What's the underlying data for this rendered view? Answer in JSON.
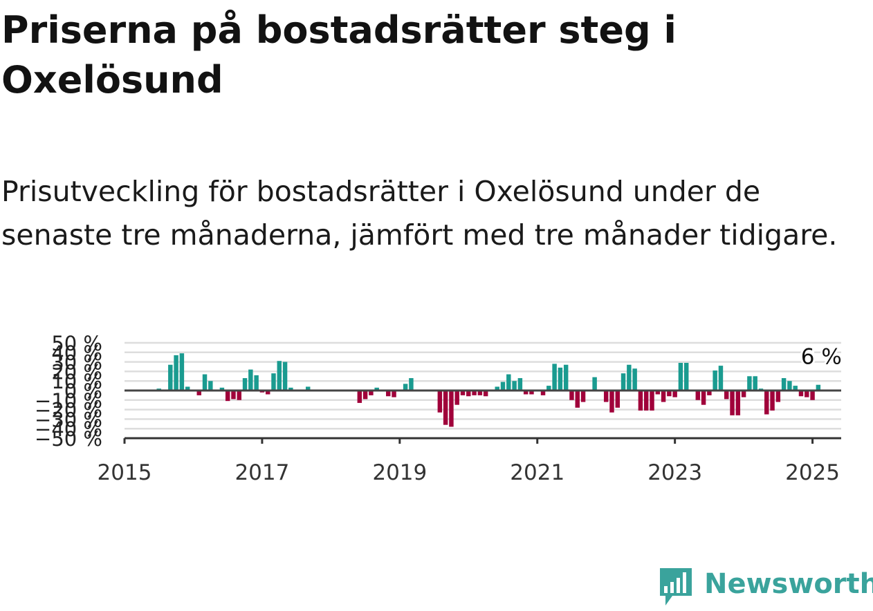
{
  "title": "Priserna på bostadsrätter steg i Oxelösund",
  "subtitle": "Prisutveckling för bostadsrätter i Oxelösund under de senaste tre månaderna, jämfört med tre månader tidigare.",
  "annotation": "6 %",
  "brand": {
    "name": "Newsworthy",
    "icon": "newsworthy-logo-icon",
    "color": "#3aa39c"
  },
  "colors": {
    "positive": "#1a9b90",
    "negative": "#a0003a",
    "grid": "#dddddd",
    "axis": "#333333"
  },
  "chart_data": {
    "type": "bar",
    "x_unit": "month",
    "ylim": [
      -50,
      50
    ],
    "xlim": [
      "2015-01",
      "2025-06"
    ],
    "y_ticks": [
      {
        "v": 50,
        "label": "50 %"
      },
      {
        "v": 40,
        "label": "40 %"
      },
      {
        "v": 30,
        "label": "30 %"
      },
      {
        "v": 20,
        "label": "20 %"
      },
      {
        "v": 10,
        "label": "10 %"
      },
      {
        "v": 0,
        "label": "0 %"
      },
      {
        "v": -10,
        "label": "−10 %"
      },
      {
        "v": -20,
        "label": "−20 %"
      },
      {
        "v": -30,
        "label": "−30 %"
      },
      {
        "v": -40,
        "label": "−40 %"
      },
      {
        "v": -50,
        "label": "−50 %"
      }
    ],
    "x_ticks": [
      {
        "date": "2015-01",
        "label": "2015"
      },
      {
        "date": "2017-01",
        "label": "2017"
      },
      {
        "date": "2019-01",
        "label": "2019"
      },
      {
        "date": "2021-01",
        "label": "2021"
      },
      {
        "date": "2023-01",
        "label": "2023"
      },
      {
        "date": "2025-01",
        "label": "2025"
      }
    ],
    "points": [
      {
        "x": "2015-07",
        "y": 2
      },
      {
        "x": "2015-09",
        "y": 27
      },
      {
        "x": "2015-10",
        "y": 37
      },
      {
        "x": "2015-11",
        "y": 39
      },
      {
        "x": "2015-12",
        "y": 4
      },
      {
        "x": "2016-02",
        "y": -5
      },
      {
        "x": "2016-03",
        "y": 17
      },
      {
        "x": "2016-04",
        "y": 10
      },
      {
        "x": "2016-06",
        "y": 3
      },
      {
        "x": "2016-07",
        "y": -11
      },
      {
        "x": "2016-08",
        "y": -9
      },
      {
        "x": "2016-09",
        "y": -10
      },
      {
        "x": "2016-10",
        "y": 13
      },
      {
        "x": "2016-11",
        "y": 22
      },
      {
        "x": "2016-12",
        "y": 16
      },
      {
        "x": "2017-01",
        "y": -2
      },
      {
        "x": "2017-02",
        "y": -4
      },
      {
        "x": "2017-03",
        "y": 18
      },
      {
        "x": "2017-04",
        "y": 31
      },
      {
        "x": "2017-05",
        "y": 30
      },
      {
        "x": "2017-06",
        "y": 3
      },
      {
        "x": "2017-08",
        "y": 1
      },
      {
        "x": "2017-09",
        "y": 4
      },
      {
        "x": "2017-11",
        "y": -1
      },
      {
        "x": "2018-06",
        "y": -13
      },
      {
        "x": "2018-07",
        "y": -9
      },
      {
        "x": "2018-08",
        "y": -5
      },
      {
        "x": "2018-09",
        "y": 3
      },
      {
        "x": "2018-11",
        "y": -6
      },
      {
        "x": "2018-12",
        "y": -7
      },
      {
        "x": "2019-02",
        "y": 7
      },
      {
        "x": "2019-03",
        "y": 13
      },
      {
        "x": "2019-05",
        "y": -1
      },
      {
        "x": "2019-08",
        "y": -23
      },
      {
        "x": "2019-09",
        "y": -36
      },
      {
        "x": "2019-10",
        "y": -38
      },
      {
        "x": "2019-11",
        "y": -15
      },
      {
        "x": "2019-12",
        "y": -5
      },
      {
        "x": "2020-01",
        "y": -6
      },
      {
        "x": "2020-02",
        "y": -5
      },
      {
        "x": "2020-03",
        "y": -5
      },
      {
        "x": "2020-04",
        "y": -6
      },
      {
        "x": "2020-06",
        "y": 4
      },
      {
        "x": "2020-07",
        "y": 9
      },
      {
        "x": "2020-08",
        "y": 17
      },
      {
        "x": "2020-09",
        "y": 10
      },
      {
        "x": "2020-10",
        "y": 13
      },
      {
        "x": "2020-11",
        "y": -4
      },
      {
        "x": "2020-12",
        "y": -4
      },
      {
        "x": "2021-01",
        "y": -1
      },
      {
        "x": "2021-02",
        "y": -5
      },
      {
        "x": "2021-03",
        "y": 5
      },
      {
        "x": "2021-04",
        "y": 28
      },
      {
        "x": "2021-05",
        "y": 24
      },
      {
        "x": "2021-06",
        "y": 27
      },
      {
        "x": "2021-07",
        "y": -10
      },
      {
        "x": "2021-08",
        "y": -18
      },
      {
        "x": "2021-09",
        "y": -12
      },
      {
        "x": "2021-11",
        "y": 14
      },
      {
        "x": "2022-01",
        "y": -12
      },
      {
        "x": "2022-02",
        "y": -23
      },
      {
        "x": "2022-03",
        "y": -18
      },
      {
        "x": "2022-04",
        "y": 18
      },
      {
        "x": "2022-05",
        "y": 27
      },
      {
        "x": "2022-06",
        "y": 23
      },
      {
        "x": "2022-07",
        "y": -21
      },
      {
        "x": "2022-08",
        "y": -21
      },
      {
        "x": "2022-09",
        "y": -21
      },
      {
        "x": "2022-10",
        "y": -4
      },
      {
        "x": "2022-11",
        "y": -12
      },
      {
        "x": "2022-12",
        "y": -6
      },
      {
        "x": "2023-01",
        "y": -7
      },
      {
        "x": "2023-02",
        "y": 29
      },
      {
        "x": "2023-03",
        "y": 29
      },
      {
        "x": "2023-05",
        "y": -10
      },
      {
        "x": "2023-06",
        "y": -15
      },
      {
        "x": "2023-07",
        "y": -5
      },
      {
        "x": "2023-08",
        "y": 21
      },
      {
        "x": "2023-09",
        "y": 26
      },
      {
        "x": "2023-10",
        "y": -9
      },
      {
        "x": "2023-11",
        "y": -26
      },
      {
        "x": "2023-12",
        "y": -26
      },
      {
        "x": "2024-01",
        "y": -7
      },
      {
        "x": "2024-02",
        "y": 15
      },
      {
        "x": "2024-03",
        "y": 15
      },
      {
        "x": "2024-04",
        "y": 2
      },
      {
        "x": "2024-05",
        "y": -25
      },
      {
        "x": "2024-06",
        "y": -21
      },
      {
        "x": "2024-07",
        "y": -12
      },
      {
        "x": "2024-08",
        "y": 13
      },
      {
        "x": "2024-09",
        "y": 10
      },
      {
        "x": "2024-10",
        "y": 5
      },
      {
        "x": "2024-11",
        "y": -6
      },
      {
        "x": "2024-12",
        "y": -7
      },
      {
        "x": "2025-01",
        "y": -10
      },
      {
        "x": "2025-02",
        "y": 6
      }
    ]
  }
}
